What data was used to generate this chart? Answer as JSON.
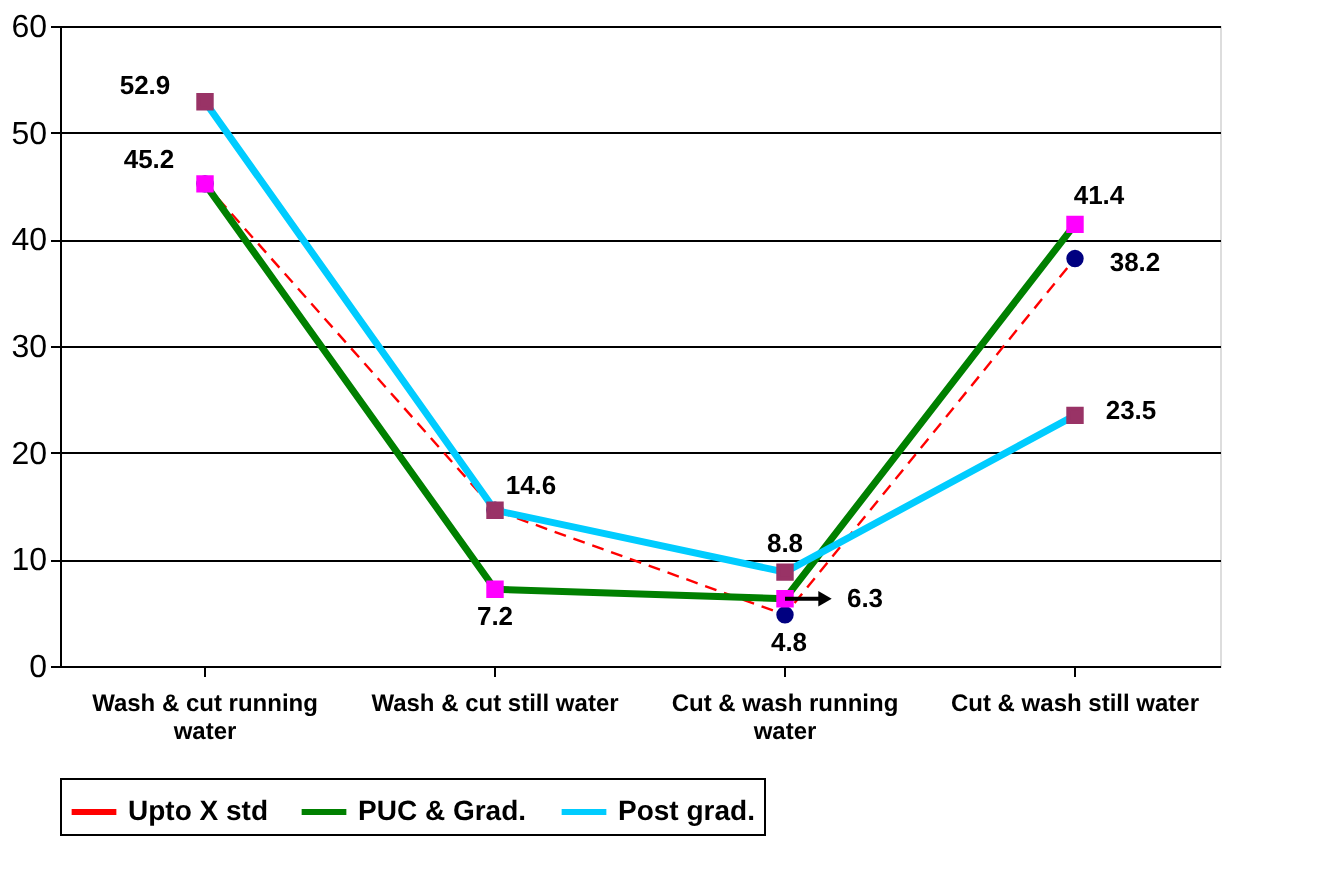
{
  "chart_data": {
    "type": "line",
    "categories": [
      "Wash & cut running water",
      "Wash & cut still water",
      "Cut & wash running water",
      "Cut & wash still water"
    ],
    "series": [
      {
        "name": "Upto X std",
        "color": "#ff0000",
        "colors": [
          "#000080",
          "#000080",
          "#000080",
          "#000080"
        ],
        "marker": "circle",
        "line_style": "dashed",
        "values": [
          45.2,
          14.6,
          4.8,
          38.2
        ],
        "value_labels": [
          "45.2",
          null,
          "4.8",
          "38.2"
        ]
      },
      {
        "name": "PUC & Grad.",
        "color": "#008000",
        "colors": [
          "#ff00ff",
          "#ff00ff",
          "#ff00ff",
          "#ff00ff"
        ],
        "marker": "square",
        "line_style": "solid",
        "values": [
          45.2,
          7.2,
          6.3,
          41.4
        ],
        "value_labels": [
          null,
          "7.2",
          "6.3",
          "41.4"
        ]
      },
      {
        "name": "Post grad.",
        "color": "#00ccff",
        "colors": [
          "#993366",
          "#993366",
          "#993366",
          "#993366"
        ],
        "marker": "square",
        "line_style": "solid",
        "values": [
          52.9,
          14.6,
          8.8,
          23.5
        ],
        "value_labels": [
          "52.9",
          "14.6",
          "8.8",
          "23.5"
        ]
      }
    ],
    "ylim": [
      0,
      60
    ],
    "yticks": [
      0,
      10,
      20,
      30,
      40,
      50,
      60
    ],
    "grid": "y",
    "legend": "bottom"
  }
}
